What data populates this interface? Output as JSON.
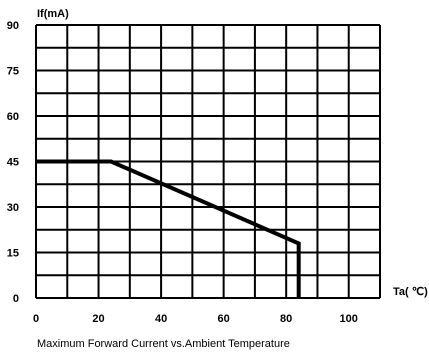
{
  "chart_data": {
    "type": "line",
    "title": "",
    "xlabel": "Ta( ℃)",
    "ylabel": "If(mA)",
    "caption": "Maximum Forward Current vs.Ambient Temperature",
    "xlim": [
      0,
      110
    ],
    "ylim": [
      0,
      90
    ],
    "x_ticks": [
      0,
      20,
      40,
      60,
      80,
      100
    ],
    "y_ticks": [
      0,
      15,
      30,
      45,
      60,
      75,
      90
    ],
    "grid": true,
    "series": [
      {
        "name": "",
        "x": [
          0,
          24,
          84,
          84
        ],
        "y": [
          45,
          45,
          18,
          0
        ]
      }
    ]
  }
}
